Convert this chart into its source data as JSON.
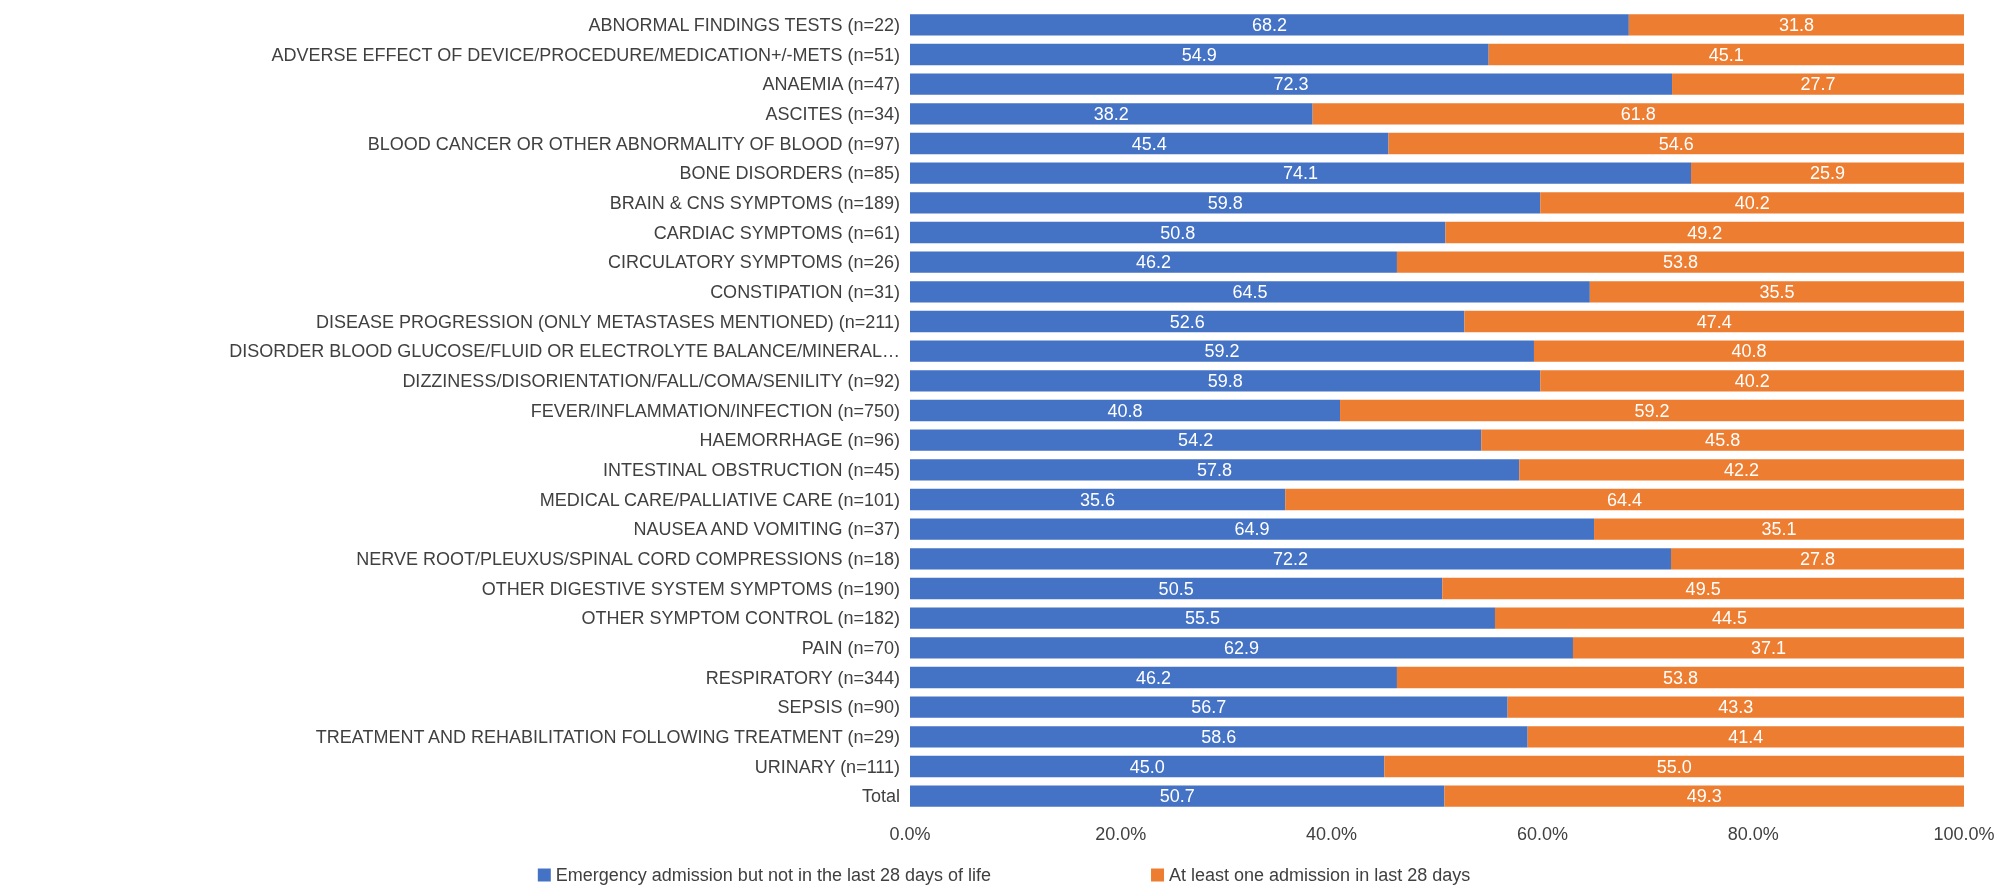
{
  "chart_data": {
    "type": "bar",
    "orientation": "horizontal",
    "stacked": true,
    "legend": "bottom",
    "grid": false,
    "categories": [
      "ABNORMAL FINDINGS TESTS (n=22)",
      "ADVERSE EFFECT OF DEVICE/PROCEDURE/MEDICATION+/-METS (n=51)",
      "ANAEMIA (n=47)",
      "ASCITES (n=34)",
      "BLOOD CANCER OR OTHER ABNORMALITY OF BLOOD (n=97)",
      "BONE DISORDERS (n=85)",
      "BRAIN & CNS SYMPTOMS (n=189)",
      "CARDIAC SYMPTOMS (n=61)",
      "CIRCULATORY SYMPTOMS (n=26)",
      "CONSTIPATION (n=31)",
      "DISEASE PROGRESSION (ONLY METASTASES MENTIONED) (n=211)",
      "DISORDER BLOOD GLUCOSE/FLUID OR ELECTROLYTE BALANCE/MINERAL…",
      "DIZZINESS/DISORIENTATION/FALL/COMA/SENILITY (n=92)",
      "FEVER/INFLAMMATION/INFECTION (n=750)",
      "HAEMORRHAGE (n=96)",
      "INTESTINAL OBSTRUCTION (n=45)",
      "MEDICAL CARE/PALLIATIVE CARE (n=101)",
      "NAUSEA AND VOMITING (n=37)",
      "NERVE ROOT/PLEUXUS/SPINAL CORD COMPRESSIONS (n=18)",
      "OTHER DIGESTIVE SYSTEM SYMPTOMS (n=190)",
      "OTHER SYMPTOM CONTROL (n=182)",
      "PAIN (n=70)",
      "RESPIRATORY (n=344)",
      "SEPSIS (n=90)",
      "TREATMENT AND REHABILITATION FOLLOWING TREATMENT (n=29)",
      "URINARY (n=111)",
      "Total"
    ],
    "xlim": [
      0,
      100
    ],
    "xticks": [
      {
        "value": 0,
        "label": "0.0%"
      },
      {
        "value": 20,
        "label": "20.0%"
      },
      {
        "value": 40,
        "label": "40.0%"
      },
      {
        "value": 60,
        "label": "60.0%"
      },
      {
        "value": 80,
        "label": "80.0%"
      },
      {
        "value": 100,
        "label": "100.0%"
      }
    ],
    "series": [
      {
        "name": "Emergency admission but not in the last 28 days of life",
        "color": "#4472c4",
        "values": [
          68.2,
          54.9,
          72.3,
          38.2,
          45.4,
          74.1,
          59.8,
          50.8,
          46.2,
          64.5,
          52.6,
          59.2,
          59.8,
          40.8,
          54.2,
          57.8,
          35.6,
          64.9,
          72.2,
          50.5,
          55.5,
          62.9,
          46.2,
          56.7,
          58.6,
          45.0,
          50.7
        ],
        "value_labels": [
          "68.2",
          "54.9",
          "72.3",
          "38.2",
          "45.4",
          "74.1",
          "59.8",
          "50.8",
          "46.2",
          "64.5",
          "52.6",
          "59.2",
          "59.8",
          "40.8",
          "54.2",
          "57.8",
          "35.6",
          "64.9",
          "72.2",
          "50.5",
          "55.5",
          "62.9",
          "46.2",
          "56.7",
          "58.6",
          "45.0",
          "50.7"
        ]
      },
      {
        "name": "At least one admission in last 28 days",
        "color": "#ed7d31",
        "values": [
          31.8,
          45.1,
          27.7,
          61.8,
          54.6,
          25.9,
          40.2,
          49.2,
          53.8,
          35.5,
          47.4,
          40.8,
          40.2,
          59.2,
          45.8,
          42.2,
          64.4,
          35.1,
          27.8,
          49.5,
          44.5,
          37.1,
          53.8,
          43.3,
          41.4,
          55.0,
          49.3
        ],
        "value_labels": [
          "31.8",
          "45.1",
          "27.7",
          "61.8",
          "54.6",
          "25.9",
          "40.2",
          "49.2",
          "53.8",
          "35.5",
          "47.4",
          "40.8",
          "40.2",
          "59.2",
          "45.8",
          "42.2",
          "64.4",
          "35.1",
          "27.8",
          "49.5",
          "44.5",
          "37.1",
          "53.8",
          "43.3",
          "41.4",
          "55.0",
          "49.3"
        ]
      }
    ]
  }
}
